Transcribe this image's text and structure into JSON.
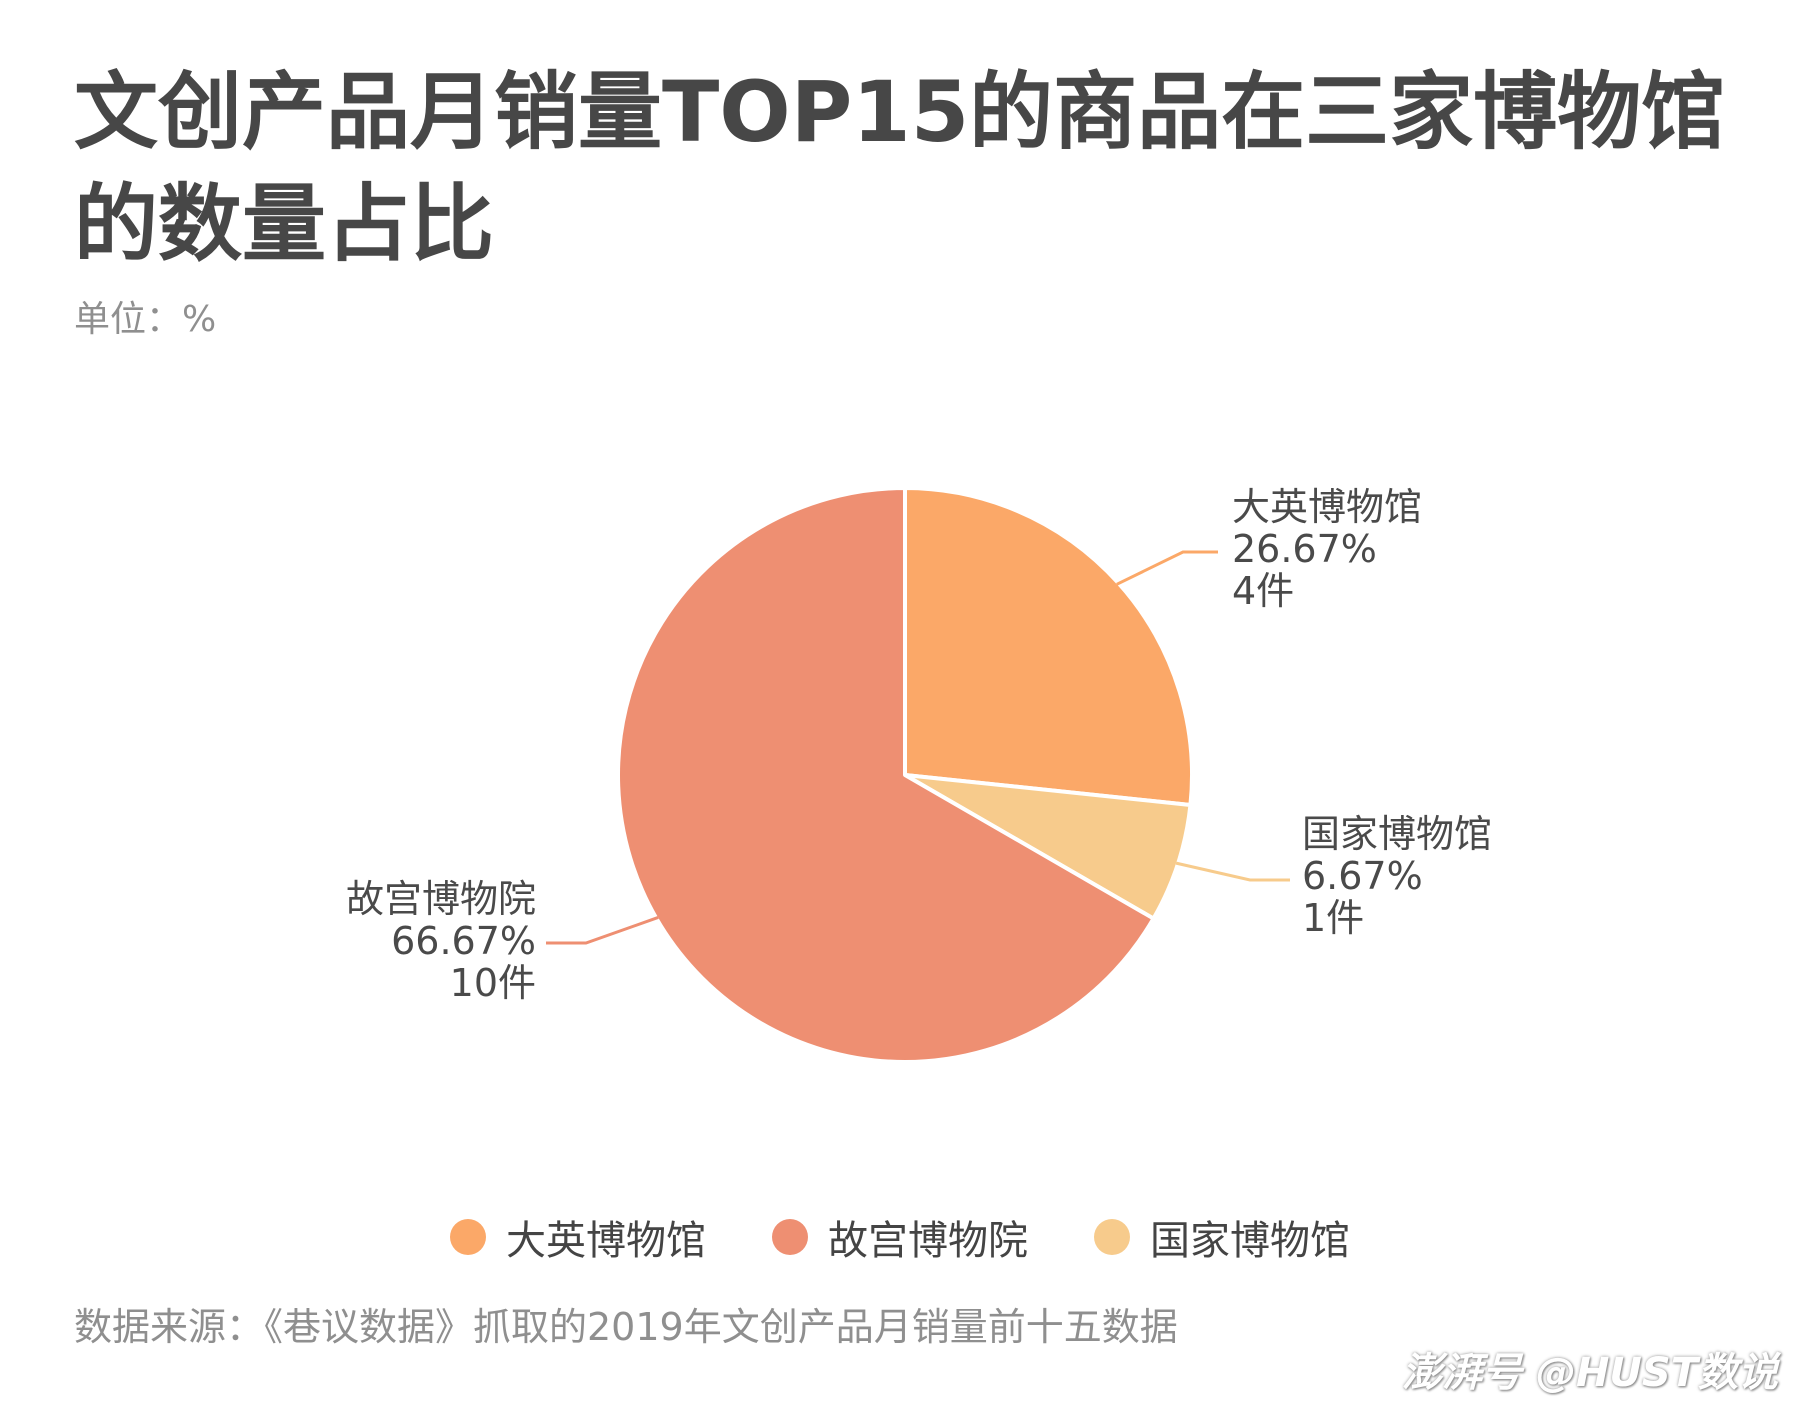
{
  "header": {
    "title": "文创产品月销量TOP15的商品在三家博物馆的数量占比",
    "unit": "单位：%"
  },
  "footer": {
    "source": "数据来源：《巷议数据》抓取的2019年文创产品月销量前十五数据",
    "watermark": "澎湃号 @HUST数说"
  },
  "chart_data": {
    "type": "pie",
    "categories": [
      "大英博物馆",
      "国家博物馆",
      "故宫博物院"
    ],
    "values": [
      26.67,
      6.67,
      66.67
    ],
    "counts": [
      4,
      1,
      10
    ],
    "percent_labels": [
      "26.67%",
      "6.67%",
      "66.67%"
    ],
    "count_labels": [
      "4件",
      "1件",
      "10件"
    ],
    "colors": [
      "#fba868",
      "#f7cb8c",
      "#ee8f72"
    ],
    "legend": {
      "position": "bottom",
      "items": [
        {
          "label": "大英博物馆",
          "color": "#fba868"
        },
        {
          "label": "故宫博物院",
          "color": "#ee8f72"
        },
        {
          "label": "国家博物馆",
          "color": "#f7cb8c"
        }
      ]
    },
    "start_angle_deg": 0,
    "direction": "clockwise",
    "label_position": "outside with leader lines"
  }
}
